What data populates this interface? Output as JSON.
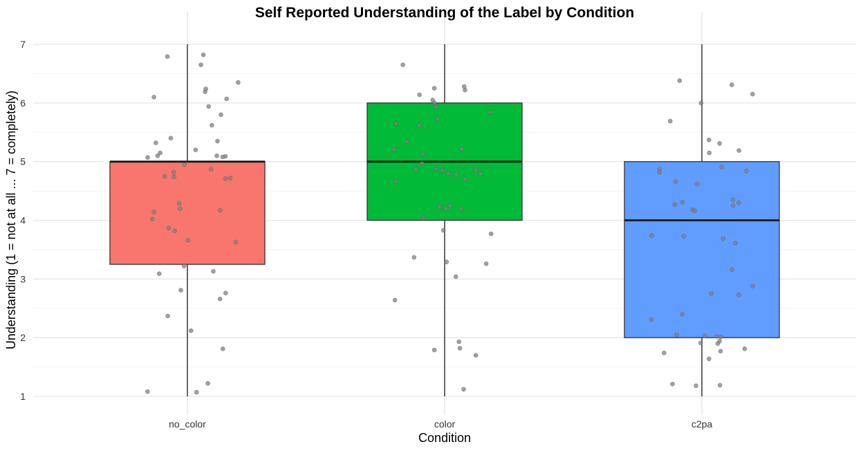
{
  "chart_data": {
    "type": "box",
    "title": "Self Reported Understanding of the Label by Condition",
    "xlabel": "Condition",
    "ylabel": "Understanding (1 = not at all ... 7 = completely)",
    "categories": [
      "no_color",
      "color",
      "c2pa"
    ],
    "ylim": [
      0.8,
      7.2
    ],
    "yticks": [
      1,
      2,
      3,
      4,
      5,
      6,
      7
    ],
    "grid": true,
    "legend": "none",
    "colors": {
      "no_color": "#F8766D",
      "color": "#00BA38",
      "c2pa": "#619CFF",
      "points": "#808080",
      "grid_major": "#E5E5E5",
      "grid_minor": "#F2F2F2"
    },
    "boxes": [
      {
        "category": "no_color",
        "min": 1,
        "q1": 3.25,
        "median": 5,
        "q3": 5,
        "max": 7
      },
      {
        "category": "color",
        "min": 1,
        "q1": 4,
        "median": 5,
        "q3": 6,
        "max": 7
      },
      {
        "category": "c2pa",
        "min": 1,
        "q1": 2,
        "median": 4,
        "q3": 5,
        "max": 7
      }
    ],
    "points": [
      {
        "category": "no_color",
        "values": [
          6.82,
          6.79,
          6.65,
          6.35,
          6.24,
          6.19,
          6.1,
          6.07,
          5.94,
          5.8,
          5.62,
          5.4,
          5.35,
          5.32,
          5.2,
          5.15,
          5.1,
          5.1,
          5.09,
          5.08,
          5.07,
          4.95,
          4.87,
          4.82,
          4.75,
          4.74,
          4.72,
          4.71,
          4.29,
          4.2,
          4.17,
          4.14,
          4.02,
          3.87,
          3.82,
          3.66,
          3.63,
          3.22,
          3.13,
          3.09,
          2.81,
          2.76,
          2.66,
          2.37,
          2.12,
          1.81,
          1.22,
          1.08,
          1.07
        ]
      },
      {
        "category": "color",
        "values": [
          6.65,
          6.28,
          6.25,
          6.22,
          6.14,
          6.05,
          6.0,
          5.93,
          5.84,
          5.73,
          5.65,
          5.62,
          5.34,
          5.22,
          5.21,
          5.13,
          4.97,
          4.88,
          4.87,
          4.86,
          4.85,
          4.8,
          4.79,
          4.78,
          4.7,
          4.66,
          4.25,
          4.23,
          4.2,
          4.19,
          4.04,
          3.83,
          3.77,
          3.37,
          3.29,
          3.26,
          3.04,
          2.64,
          1.93,
          1.82,
          1.79,
          1.7,
          1.12
        ]
      },
      {
        "category": "c2pa",
        "values": [
          6.38,
          6.31,
          6.15,
          6.0,
          5.69,
          5.37,
          5.31,
          5.19,
          5.15,
          4.91,
          4.87,
          4.84,
          4.82,
          4.66,
          4.62,
          4.35,
          4.31,
          4.3,
          4.27,
          4.25,
          4.18,
          4.16,
          3.74,
          3.73,
          3.69,
          3.61,
          3.16,
          2.88,
          2.75,
          2.73,
          2.4,
          2.31,
          2.05,
          2.03,
          2.02,
          2.01,
          1.94,
          1.91,
          1.9,
          1.81,
          1.77,
          1.74,
          1.64,
          1.21,
          1.19,
          1.18
        ]
      }
    ]
  }
}
